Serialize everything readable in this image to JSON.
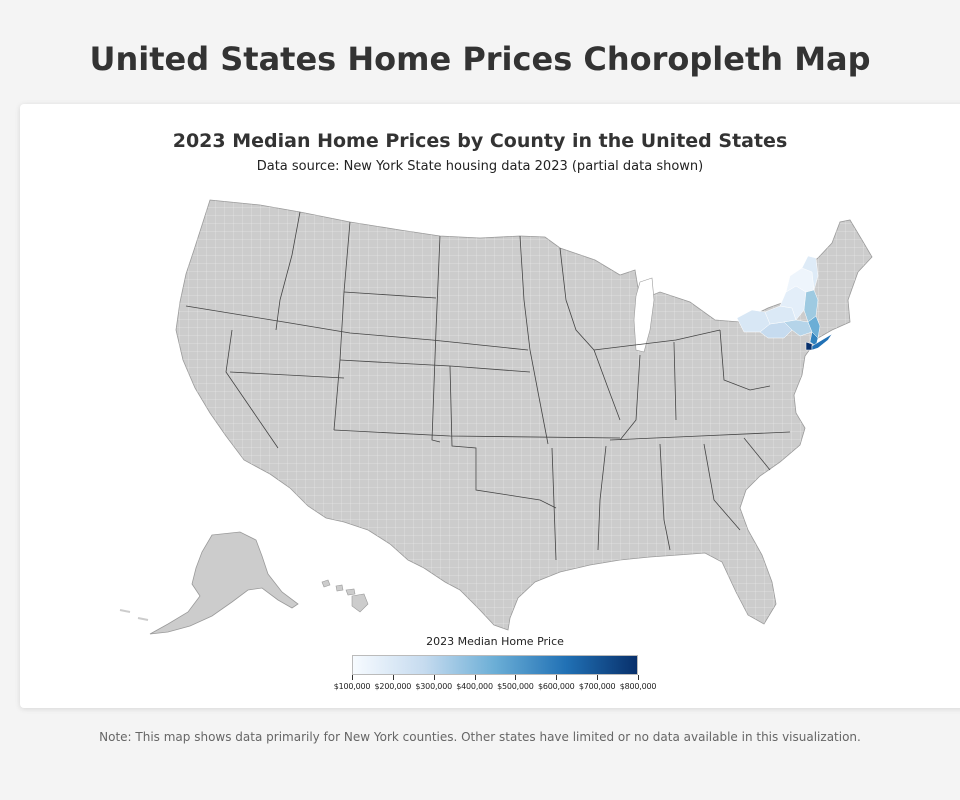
{
  "page": {
    "title": "United States Home Prices Choropleth Map",
    "note": "Note: This map shows data primarily for New York counties. Other states have limited or no data available in this visualization."
  },
  "map": {
    "title": "2023 Median Home Prices by County in the United States",
    "subtitle": "Data source: New York State housing data 2023 (partial data shown)",
    "no_data_color": "#cccccc",
    "highlighted_state": "New York",
    "legend": {
      "title": "2023 Median Home Price",
      "min": 100000,
      "max": 800000,
      "colors": [
        "#f7fbff",
        "#c6dbef",
        "#6baed6",
        "#2171b5",
        "#08306b"
      ],
      "ticks": [
        "$100,000",
        "$200,000",
        "$300,000",
        "$400,000",
        "$500,000",
        "$600,000",
        "$700,000",
        "$800,000"
      ]
    }
  }
}
